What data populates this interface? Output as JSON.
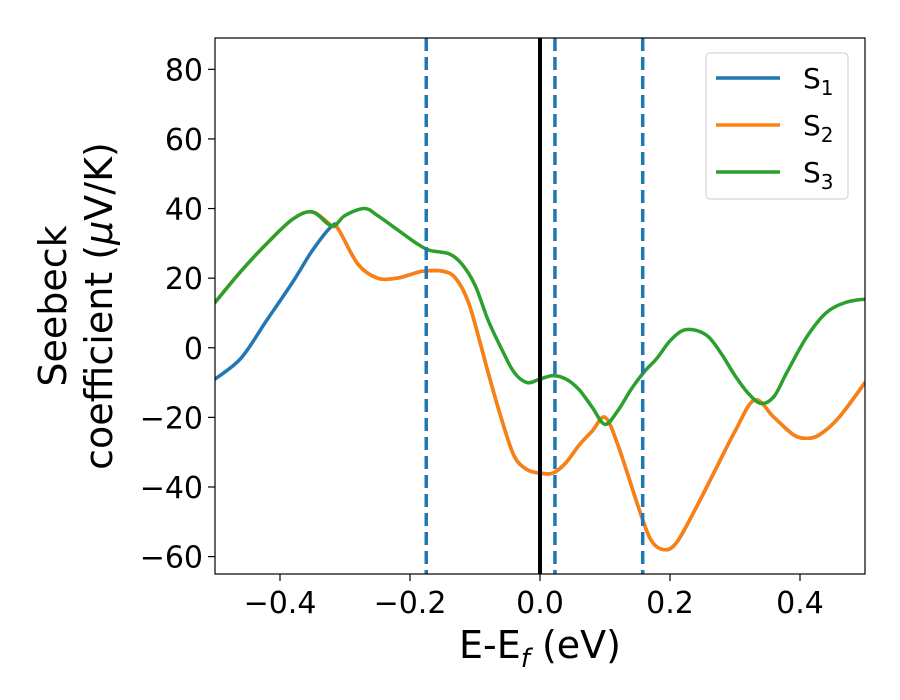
{
  "chart_data": {
    "type": "line",
    "title": "",
    "xlabel": {
      "main": "E-E",
      "sub": "f",
      "unit": " (eV)"
    },
    "ylabel": {
      "line1": "Seebeck",
      "line2_prefix": "coefficient  (",
      "mu": "μ",
      "line2_suffix": "V/K)"
    },
    "xlim": [
      -0.5,
      0.5
    ],
    "ylim": [
      -65,
      89
    ],
    "xticks": [
      -0.4,
      -0.2,
      0.0,
      0.2,
      0.4
    ],
    "xtick_labels": [
      "−0.4",
      "−0.2",
      "0.0",
      "0.2",
      "0.4"
    ],
    "yticks": [
      -60,
      -40,
      -20,
      0,
      20,
      40,
      60,
      80
    ],
    "ytick_labels": [
      "−60",
      "−40",
      "−20",
      "0",
      "20",
      "40",
      "60",
      "80"
    ],
    "grid": false,
    "legend_position": "top-right",
    "vertical_lines": [
      {
        "x": 0.0,
        "style": "solid",
        "color": "#000000"
      },
      {
        "x": -0.175,
        "style": "dashed",
        "color": "#1f77b4"
      },
      {
        "x": 0.023,
        "style": "dashed",
        "color": "#1f77b4"
      },
      {
        "x": 0.158,
        "style": "dashed",
        "color": "#1f77b4"
      }
    ],
    "series": [
      {
        "name": "S",
        "sub": "1",
        "color": "#1f77b4",
        "x": [
          -0.5,
          -0.46,
          -0.42,
          -0.38,
          -0.35,
          -0.32,
          -0.31,
          -0.28,
          -0.25,
          -0.22,
          -0.2,
          -0.18,
          -0.15,
          -0.13,
          -0.11,
          -0.09,
          -0.08,
          -0.06,
          -0.04,
          -0.02,
          0.0,
          0.02,
          0.04,
          0.06,
          0.08,
          0.1,
          0.12,
          0.15,
          0.17,
          0.19,
          0.21,
          0.24,
          0.27,
          0.3,
          0.33,
          0.36,
          0.39,
          0.41,
          0.43,
          0.46,
          0.5
        ],
        "y": [
          -9,
          -3,
          8,
          19,
          28,
          35,
          34,
          24,
          20,
          20,
          21,
          22,
          22,
          20,
          13,
          0,
          -7,
          -20,
          -31,
          -35,
          -36,
          -36,
          -33,
          -28,
          -24,
          -20,
          -28,
          -45,
          -55,
          -58,
          -56,
          -46,
          -35,
          -24,
          -15,
          -20,
          -25,
          -26,
          -25,
          -20,
          -10
        ]
      },
      {
        "name": "S",
        "sub": "2",
        "color": "#ff7f0e",
        "x": [
          -0.5,
          -0.46,
          -0.42,
          -0.38,
          -0.35,
          -0.32,
          -0.31,
          -0.28,
          -0.25,
          -0.22,
          -0.2,
          -0.18,
          -0.15,
          -0.13,
          -0.11,
          -0.09,
          -0.08,
          -0.06,
          -0.04,
          -0.02,
          0.0,
          0.02,
          0.04,
          0.06,
          0.08,
          0.1,
          0.12,
          0.15,
          0.17,
          0.19,
          0.21,
          0.24,
          0.27,
          0.3,
          0.33,
          0.36,
          0.39,
          0.41,
          0.43,
          0.46,
          0.5
        ],
        "y": [
          13,
          22,
          30,
          37,
          39,
          35,
          34,
          24,
          20,
          20,
          21,
          22,
          22,
          20,
          13,
          0,
          -7,
          -20,
          -31,
          -35,
          -36,
          -36,
          -33,
          -28,
          -24,
          -20,
          -28,
          -45,
          -55,
          -58,
          -56,
          -46,
          -35,
          -24,
          -15,
          -20,
          -25,
          -26,
          -25,
          -20,
          -10
        ]
      },
      {
        "name": "S",
        "sub": "3",
        "color": "#2ca02c",
        "x": [
          -0.5,
          -0.46,
          -0.42,
          -0.38,
          -0.35,
          -0.32,
          -0.3,
          -0.27,
          -0.25,
          -0.22,
          -0.19,
          -0.17,
          -0.14,
          -0.12,
          -0.1,
          -0.08,
          -0.06,
          -0.04,
          -0.02,
          0.0,
          0.02,
          0.04,
          0.06,
          0.08,
          0.1,
          0.12,
          0.14,
          0.16,
          0.18,
          0.2,
          0.22,
          0.24,
          0.26,
          0.28,
          0.3,
          0.32,
          0.34,
          0.36,
          0.38,
          0.41,
          0.44,
          0.47,
          0.5
        ],
        "y": [
          13,
          22,
          30,
          37,
          39,
          35,
          38,
          40,
          38,
          34,
          30,
          28,
          27,
          24,
          18,
          8,
          0,
          -7,
          -10,
          -9,
          -8,
          -9,
          -12,
          -17,
          -22,
          -18,
          -12,
          -7,
          -3,
          2,
          5,
          5,
          3,
          -2,
          -8,
          -13,
          -16,
          -14,
          -7,
          3,
          10,
          13,
          14
        ]
      }
    ]
  }
}
